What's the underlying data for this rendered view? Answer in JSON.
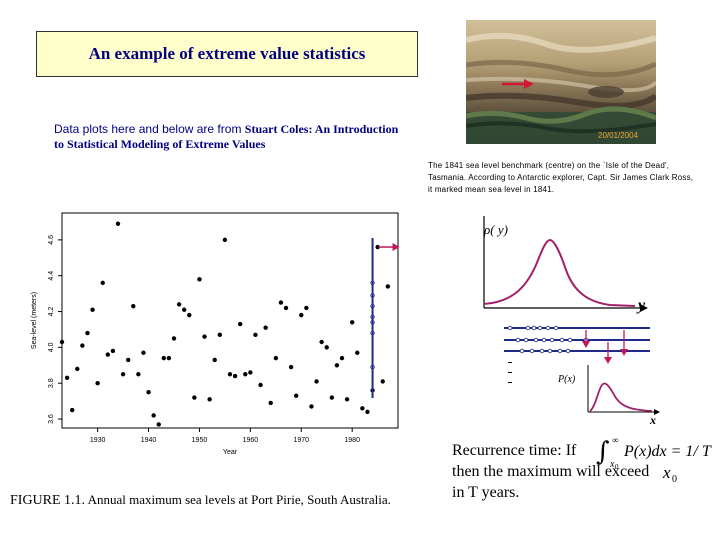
{
  "slide": {
    "title": "An example of extreme value statistics",
    "credit_line1_plain": "Data plots here and below are from ",
    "credit_line1_bold": "Stuart Coles: An Introduction",
    "credit_line2_bold": "to Statistical Modeling of  Extreme Values",
    "photo_date": "20/01/2004",
    "photo_caption": "The 1841 sea level benchmark (centre) on the `Isle of the Dead', Tasmania.  According to Antarctic explorer, Capt. Sir James Clark Ross, it marked mean sea level in 1841.",
    "figure_caption_label": "FIGURE 1.1.",
    "figure_caption_text": " Annual maximum sea levels at Port Pirie, South Australia.",
    "recurrence_line1": "Recurrence time: If",
    "recurrence_line2": "then the maximum will  exceed",
    "recurrence_line3": "in T years.",
    "formula_integrand": "P(x)dx = 1/ T",
    "formula_lower": "x",
    "formula_lower_sub": "0",
    "formula_upper": "∞",
    "formula_x0": "x",
    "formula_x0_sub": "0",
    "schematic_label_top": "ρ( y)",
    "schematic_axis_top": "y",
    "schematic_label_bottom": "P(x)",
    "schematic_axis_bottom": "x",
    "colors": {
      "title_text": "#000080",
      "title_bg": "#ffffcc",
      "curve": "#a0206a",
      "arrow": "#c0185c",
      "marker_line": "#1f2a8a"
    }
  },
  "chart_data": {
    "type": "scatter",
    "xlabel": "Year",
    "ylabel": "Sea-level (meters)",
    "xlim": [
      1923,
      1989
    ],
    "ylim": [
      3.55,
      4.75
    ],
    "xticks": [
      1930,
      1940,
      1950,
      1960,
      1970,
      1980
    ],
    "yticks": [
      3.6,
      3.8,
      4.0,
      4.2,
      4.4,
      4.6
    ],
    "x_tick_labels": [
      "1930",
      "1940",
      "1950",
      "1960",
      "1970",
      "1980"
    ],
    "y_tick_labels": [
      "3.6",
      "3.8",
      "4.0",
      "4.2",
      "4.4",
      "4.6"
    ],
    "x": [
      1923,
      1924,
      1925,
      1926,
      1927,
      1928,
      1929,
      1930,
      1931,
      1932,
      1933,
      1934,
      1935,
      1936,
      1937,
      1938,
      1939,
      1940,
      1941,
      1942,
      1943,
      1944,
      1945,
      1946,
      1947,
      1948,
      1949,
      1950,
      1951,
      1952,
      1953,
      1954,
      1955,
      1956,
      1957,
      1958,
      1959,
      1960,
      1961,
      1962,
      1963,
      1964,
      1965,
      1966,
      1967,
      1968,
      1969,
      1970,
      1971,
      1972,
      1973,
      1974,
      1975,
      1976,
      1977,
      1978,
      1979,
      1980,
      1981,
      1982,
      1983,
      1984,
      1985,
      1986,
      1987
    ],
    "y": [
      4.03,
      3.83,
      3.65,
      3.88,
      4.01,
      4.08,
      4.21,
      3.8,
      4.36,
      3.96,
      3.98,
      4.69,
      3.85,
      3.93,
      4.23,
      3.85,
      3.97,
      3.75,
      3.62,
      3.57,
      3.94,
      3.94,
      4.05,
      4.24,
      4.21,
      4.18,
      3.72,
      4.38,
      4.06,
      3.71,
      3.93,
      4.07,
      4.6,
      3.85,
      3.84,
      4.13,
      3.85,
      3.86,
      4.07,
      3.79,
      4.11,
      3.69,
      3.94,
      4.25,
      4.22,
      3.89,
      3.73,
      4.18,
      4.22,
      3.67,
      3.81,
      4.03,
      4.0,
      3.72,
      3.9,
      3.94,
      3.71,
      4.14,
      3.97,
      3.66,
      3.64,
      3.76,
      4.56,
      3.81,
      4.34
    ],
    "highlighted_x": 1984,
    "grid": false
  }
}
